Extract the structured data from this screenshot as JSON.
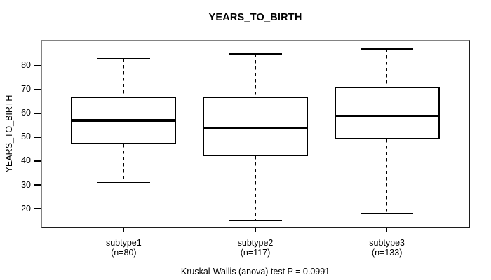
{
  "figure": {
    "title": "YEARS_TO_BIRTH",
    "y_axis_title": "YEARS_TO_BIRTH",
    "caption": "Kruskal-Wallis (anova) test P = 0.0991"
  },
  "chart_data": {
    "type": "boxplot",
    "title": "YEARS_TO_BIRTH",
    "xlabel": "",
    "ylabel": "YEARS_TO_BIRTH",
    "caption": "Kruskal-Wallis (anova) test P = 0.0991",
    "statistical_test": {
      "name": "Kruskal-Wallis (anova) test",
      "p_value": "0.0991"
    },
    "ylim": [
      12.4,
      90.2
    ],
    "yticks": [
      "20",
      "30",
      "40",
      "50",
      "60",
      "70",
      "80"
    ],
    "ytick_values": [
      20,
      30,
      40,
      50,
      60,
      70,
      80
    ],
    "grid": false,
    "legend_position": "none",
    "groups": [
      {
        "label": "subtype1",
        "sublabel": "(n=80)",
        "n": 80,
        "whisker_low": 31,
        "q1": 47,
        "median": 57,
        "q3": 67,
        "whisker_high": 83
      },
      {
        "label": "subtype2",
        "sublabel": "(n=117)",
        "n": 117,
        "whisker_low": 15,
        "q1": 42,
        "median": 54,
        "q3": 67,
        "whisker_high": 85
      },
      {
        "label": "subtype3",
        "sublabel": "(n=133)",
        "n": 133,
        "whisker_low": 18,
        "q1": 49,
        "median": 59,
        "q3": 71,
        "whisker_high": 87
      }
    ],
    "colors": {
      "box_fill": "#ffffff",
      "line": "#000000",
      "frame_light": "#828282",
      "frame_dark": "#1c1c1c",
      "background": "#ffffff"
    }
  }
}
